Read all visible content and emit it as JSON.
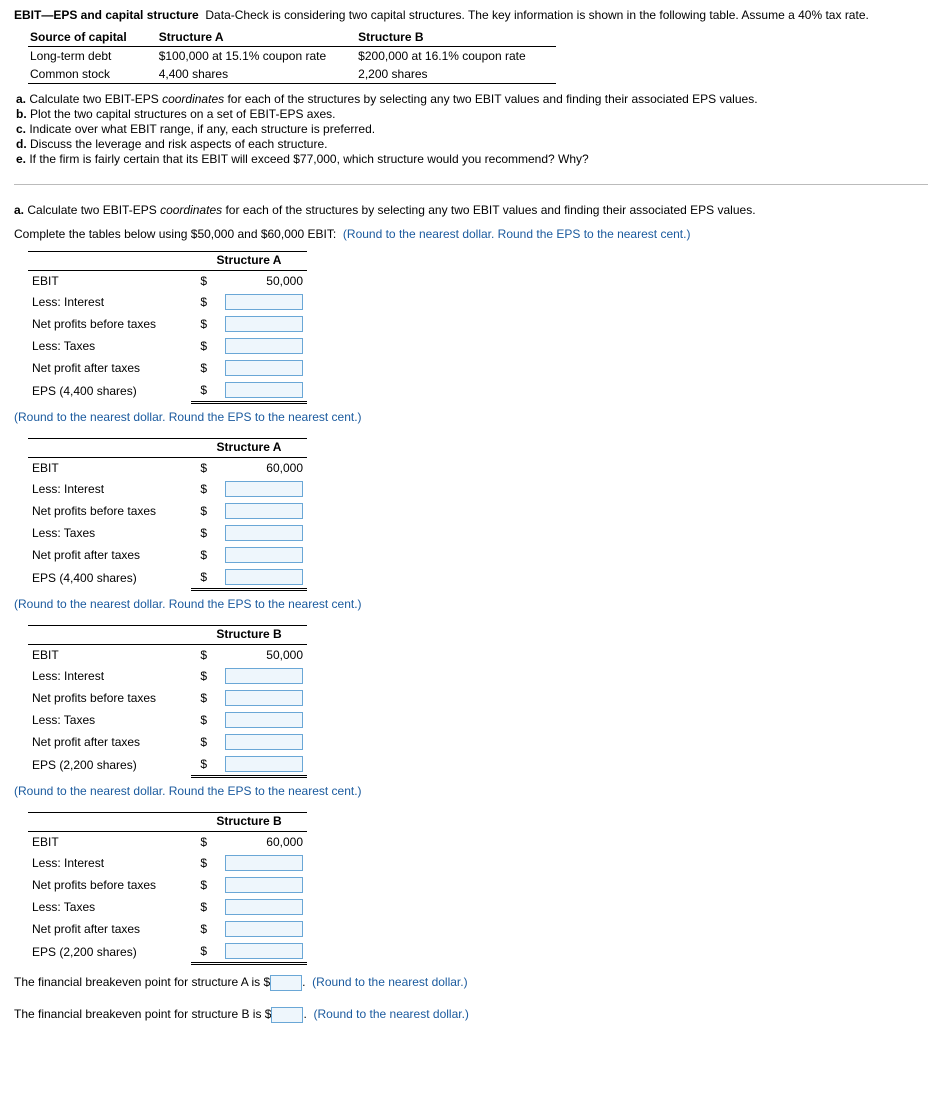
{
  "intro": {
    "title": "EBIT—EPS and capital structure",
    "body": "Data-Check is considering two capital structures. The key information is shown in the following table. Assume a 40% tax rate."
  },
  "cap_table": {
    "headers": [
      "Source of capital",
      "Structure A",
      "Structure B"
    ],
    "rows": [
      [
        "Long-term debt",
        "$100,000 at 15.1% coupon rate",
        "$200,000 at 16.1% coupon rate"
      ],
      [
        "Common stock",
        "4,400 shares",
        "2,200 shares"
      ]
    ]
  },
  "questions": {
    "a": {
      "letter": "a.",
      "pre": " Calculate two EBIT-EPS ",
      "mid": "coordinates",
      "post": " for each of the structures by selecting any two EBIT values and finding their associated EPS values."
    },
    "b": {
      "letter": "b.",
      "text": " Plot the two capital structures on a set of EBIT-EPS axes."
    },
    "c": {
      "letter": "c.",
      "text": " Indicate over what EBIT range, if any, each structure is preferred."
    },
    "d": {
      "letter": "d.",
      "text": " Discuss the leverage and risk aspects of each structure."
    },
    "e": {
      "letter": "e.",
      "text": " If the firm is fairly certain that its EBIT will exceed $77,000, which structure would you recommend? Why?"
    }
  },
  "sectionA": {
    "letter": "a.",
    "pre": " Calculate two EBIT-EPS ",
    "mid": "coordinates",
    "post": " for each of the structures by selecting any two EBIT values and finding their associated EPS values."
  },
  "completeLine": {
    "text": "Complete the tables below using $50,000 and $60,000 EBIT:",
    "note": "(Round to the nearest dollar. Round the EPS to the nearest cent.)"
  },
  "row_labels": {
    "ebit": "EBIT",
    "less_interest": "Less: Interest",
    "npbt": "Net profits before taxes",
    "less_taxes": "Less: Taxes",
    "npat": "Net profit after taxes"
  },
  "tables": [
    {
      "header": "Structure A",
      "ebit": "50,000",
      "eps_label": "EPS (4,400 shares)"
    },
    {
      "header": "Structure A",
      "ebit": "60,000",
      "eps_label": "EPS (4,400 shares)"
    },
    {
      "header": "Structure B",
      "ebit": "50,000",
      "eps_label": "EPS (2,200 shares)"
    },
    {
      "header": "Structure B",
      "ebit": "60,000",
      "eps_label": "EPS (2,200 shares)"
    }
  ],
  "round_note": "(Round to the nearest dollar. Round the EPS to the nearest cent.)",
  "breakeven": {
    "a_pre": "The financial breakeven point for structure A is $",
    "a_post": ".",
    "b_pre": "The financial breakeven point for structure B is $",
    "b_post": ".",
    "note": "(Round to the nearest dollar.)"
  },
  "style": {
    "input_border": "#6aa7d6",
    "input_bg": "#eef6fc",
    "blue_text": "#1a5a9e"
  }
}
